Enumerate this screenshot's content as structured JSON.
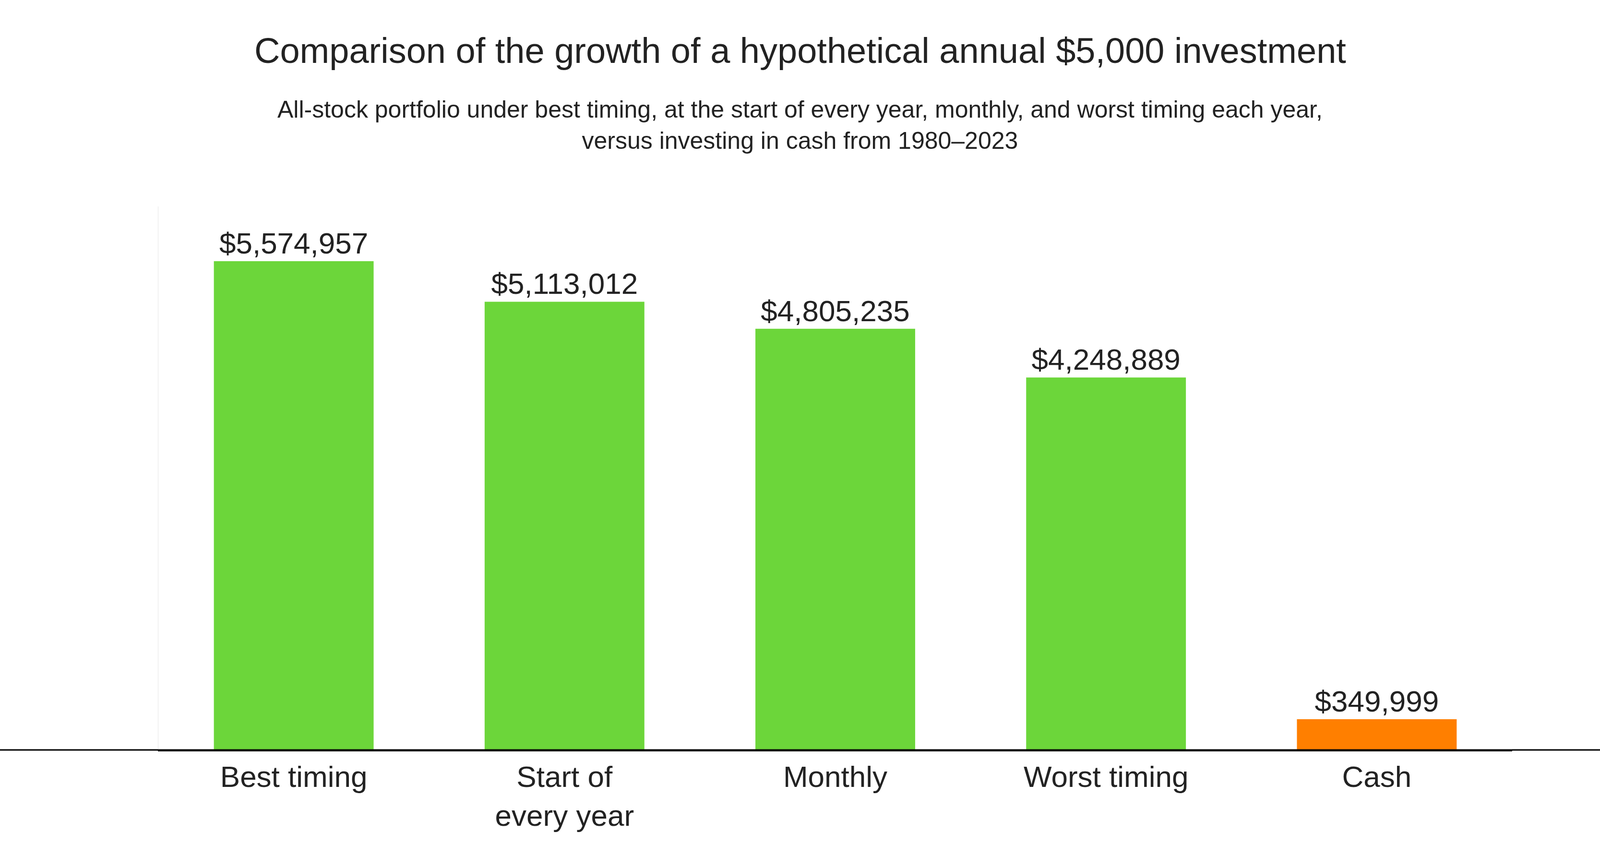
{
  "chart_data": {
    "type": "bar",
    "title": "Comparison of the growth of a hypothetical annual $5,000 investment",
    "subtitle": "All-stock portfolio under best timing, at the start of every year, monthly, and worst timing each year, versus investing in cash from 1980–2023",
    "categories": [
      "Best timing",
      "Start of every year",
      "Monthly",
      "Worst timing",
      "Cash"
    ],
    "values": [
      5574957,
      5113012,
      4805235,
      4248889,
      349999
    ],
    "value_labels": [
      "$5,574,957",
      "$5,113,012",
      "$4,805,235",
      "$4,248,889",
      "$349,999"
    ],
    "colors": [
      "#6cd63a",
      "#6cd63a",
      "#6cd63a",
      "#6cd63a",
      "#ff7f00"
    ],
    "ylim": [
      0,
      6200000
    ],
    "grid": false,
    "data_labels": true,
    "tick_labels": "x"
  }
}
